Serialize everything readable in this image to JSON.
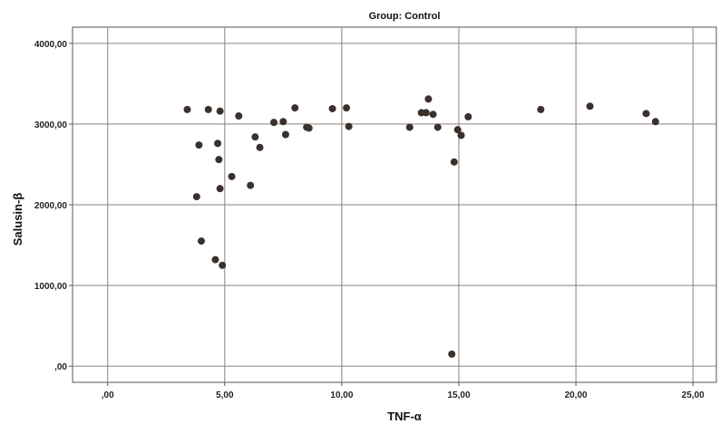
{
  "chart_data": {
    "type": "scatter",
    "title": "Group: Control",
    "xlabel": "TNF-α",
    "ylabel": "Salusin-β",
    "xlim": [
      -1.5,
      26
    ],
    "ylim": [
      -200,
      4200
    ],
    "x_ticks": [
      0,
      5,
      10,
      15,
      20,
      25
    ],
    "x_tick_labels": [
      ",00",
      "5,00",
      "10,00",
      "15,00",
      "20,00",
      "25,00"
    ],
    "y_ticks": [
      0,
      1000,
      2000,
      3000,
      4000
    ],
    "y_tick_labels": [
      ",00",
      "1000,00",
      "2000,00",
      "3000,00",
      "4000,00"
    ],
    "grid": true,
    "colors": {
      "point": "#3a302c",
      "grid": "#8a7f7a",
      "frame": "#555555"
    },
    "points": [
      {
        "x": 3.4,
        "y": 3180
      },
      {
        "x": 3.8,
        "y": 2100
      },
      {
        "x": 3.9,
        "y": 2740
      },
      {
        "x": 4.0,
        "y": 1550
      },
      {
        "x": 4.3,
        "y": 3180
      },
      {
        "x": 4.6,
        "y": 1320
      },
      {
        "x": 4.7,
        "y": 2760
      },
      {
        "x": 4.75,
        "y": 2560
      },
      {
        "x": 4.8,
        "y": 3160
      },
      {
        "x": 4.8,
        "y": 2200
      },
      {
        "x": 4.9,
        "y": 1250
      },
      {
        "x": 5.3,
        "y": 2350
      },
      {
        "x": 5.6,
        "y": 3100
      },
      {
        "x": 6.1,
        "y": 2240
      },
      {
        "x": 6.3,
        "y": 2840
      },
      {
        "x": 6.5,
        "y": 2710
      },
      {
        "x": 7.1,
        "y": 3020
      },
      {
        "x": 7.5,
        "y": 3030
      },
      {
        "x": 7.6,
        "y": 2870
      },
      {
        "x": 8.0,
        "y": 3200
      },
      {
        "x": 8.5,
        "y": 2960
      },
      {
        "x": 8.6,
        "y": 2950
      },
      {
        "x": 9.6,
        "y": 3190
      },
      {
        "x": 10.2,
        "y": 3200
      },
      {
        "x": 10.3,
        "y": 2970
      },
      {
        "x": 12.9,
        "y": 2960
      },
      {
        "x": 13.4,
        "y": 3140
      },
      {
        "x": 13.6,
        "y": 3140
      },
      {
        "x": 13.7,
        "y": 3310
      },
      {
        "x": 13.9,
        "y": 3120
      },
      {
        "x": 14.1,
        "y": 2960
      },
      {
        "x": 14.7,
        "y": 150
      },
      {
        "x": 14.8,
        "y": 2530
      },
      {
        "x": 14.95,
        "y": 2930
      },
      {
        "x": 15.1,
        "y": 2860
      },
      {
        "x": 15.4,
        "y": 3090
      },
      {
        "x": 18.5,
        "y": 3180
      },
      {
        "x": 20.6,
        "y": 3220
      },
      {
        "x": 23.0,
        "y": 3130
      },
      {
        "x": 23.4,
        "y": 3030
      }
    ]
  }
}
